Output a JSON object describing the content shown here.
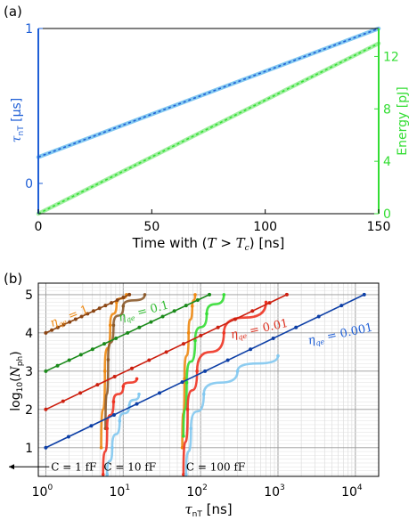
{
  "colors": {
    "blue": "#1f5fd6",
    "green": "#33dd33",
    "light_blue": "#82c8f0",
    "light_green": "#9ff09f"
  },
  "chart_data": [
    {
      "type": "line",
      "panel_label": "(a)",
      "xlabel_parts": [
        "Time with (",
        "T",
        " > ",
        "T",
        "c",
        ") [ns]"
      ],
      "xlim": [
        0,
        150
      ],
      "xticks": [
        "0",
        "50",
        "100",
        "150"
      ],
      "left_axis": {
        "label_symbol": "τ",
        "label_sub": "nT",
        "label_unit": " [μs]",
        "ticks": [
          0,
          1
        ],
        "tick_labels": [
          "0",
          "1"
        ],
        "color": "#1f5fd6"
      },
      "right_axis": {
        "label": "Energy [pJ]",
        "ylim": [
          0,
          14
        ],
        "ticks": [
          0,
          4,
          8,
          12
        ],
        "tick_labels": [
          "0",
          "4",
          "8",
          "12"
        ],
        "color": "#33dd33"
      },
      "series": [
        {
          "axis": "left",
          "color": "#1f5fd6",
          "x": [
            0,
            150
          ],
          "y": [
            0.17,
            1.0
          ]
        },
        {
          "axis": "right",
          "color": "#33dd33",
          "x": [
            0,
            150
          ],
          "y": [
            0,
            13.0
          ]
        }
      ]
    },
    {
      "type": "line",
      "panel_label": "(b)",
      "xscale": "log",
      "xlim": [
        0.8,
        20000
      ],
      "ylim": [
        0.25,
        5.3
      ],
      "xlabel_parts": [
        "τ",
        "nT",
        " [ns]"
      ],
      "ylabel_parts": [
        "log",
        "10",
        "(",
        "N",
        "ph",
        ")"
      ],
      "yticks": [
        "1",
        "2",
        "3",
        "4",
        "5"
      ],
      "xticks": [
        "10",
        "0",
        "10",
        "1",
        "10",
        "2",
        "10",
        "3",
        "10",
        "4"
      ],
      "eta_label": "η",
      "eta_sub": "qe",
      "eta_annotations": [
        {
          "text": " = 1",
          "x": 1.2,
          "y": 4.15,
          "color": "#ee8811"
        },
        {
          "text": " = 0.1",
          "x": 9.0,
          "y": 4.3,
          "color": "#33bb33"
        },
        {
          "text": " = 0.01",
          "x": 250,
          "y": 3.85,
          "color": "#dd3322"
        },
        {
          "text": " = 0.001",
          "x": 2500,
          "y": 3.7,
          "color": "#1f5fd6"
        }
      ],
      "capacitance_labels": [
        {
          "text": "C = 1 fF",
          "x": 0.85,
          "y": 0.5
        },
        {
          "text": "C = 10 fF",
          "x": 5.6,
          "y": 0.5
        },
        {
          "text": "C = 100 fF",
          "x": 65,
          "y": 0.5
        }
      ],
      "lines": [
        {
          "name": "",
          "color": "#8B4513",
          "x": [
            1,
            12
          ],
          "y": [
            4,
            5
          ]
        },
        {
          "name": "",
          "color": "#1a8a1a",
          "x": [
            1,
            130
          ],
          "y": [
            3,
            5
          ]
        },
        {
          "name": "",
          "color": "#cc1f0f",
          "x": [
            1,
            1300
          ],
          "y": [
            2,
            5
          ]
        },
        {
          "name": "",
          "color": "#0d3fa6",
          "x": [
            1,
            13000
          ],
          "y": [
            1,
            5
          ]
        }
      ],
      "curves": [
        {
          "color": "#ee8811",
          "x": [
            5.2,
            5.8,
            6.8,
            8.2,
            11
          ],
          "y": [
            1.0,
            3.0,
            4.2,
            4.8,
            5.0
          ]
        },
        {
          "color": "#8B5A2B",
          "x": [
            5.9,
            6.4,
            7.5,
            10,
            19
          ],
          "y": [
            1.5,
            3.3,
            4.2,
            4.7,
            5.0
          ]
        },
        {
          "color": "#ee3322",
          "x": [
            5.5,
            6.2,
            7.5,
            10,
            15
          ],
          "y": [
            0.3,
            1.5,
            2.2,
            2.6,
            2.8
          ]
        },
        {
          "color": "#82c8f0",
          "x": [
            6.2,
            7.2,
            9,
            12,
            16
          ],
          "y": [
            0.3,
            1.0,
            1.7,
            2.1,
            2.4
          ]
        },
        {
          "color": "#ee8811",
          "x": [
            58,
            62,
            70,
            78,
            85
          ],
          "y": [
            1.0,
            2.8,
            4.0,
            4.7,
            5.0
          ]
        },
        {
          "color": "#33dd33",
          "x": [
            60,
            66,
            85,
            120,
            200
          ],
          "y": [
            1.3,
            2.7,
            3.8,
            4.5,
            5.0
          ]
        },
        {
          "color": "#ee3322",
          "x": [
            60,
            68,
            90,
            200,
            700
          ],
          "y": [
            0.3,
            2.0,
            3.0,
            4.0,
            4.8
          ]
        },
        {
          "color": "#82c8f0",
          "x": [
            65,
            75,
            110,
            300,
            1000
          ],
          "y": [
            0.3,
            1.5,
            2.4,
            3.0,
            3.4
          ]
        }
      ]
    }
  ]
}
